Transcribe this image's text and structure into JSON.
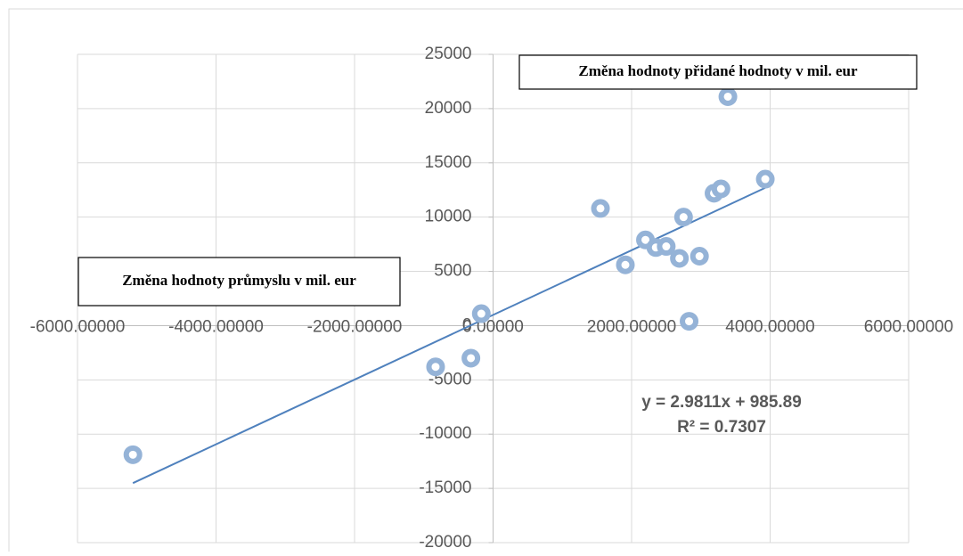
{
  "chart_data": {
    "type": "scatter",
    "xlabel": "Změna hodnoty průmyslu v mil. eur",
    "ylabel": "Změna hodnoty přidané hodnoty v mil. eur",
    "series": [
      {
        "color": "#95b3d7",
        "x": [
          -5200,
          -830,
          -170,
          -320,
          1550,
          1910,
          2200,
          2350,
          2500,
          2690,
          2750,
          2830,
          2980,
          3190,
          3290,
          3390,
          3930
        ],
        "values": [
          -11900,
          -3800,
          1100,
          -3000,
          10800,
          5600,
          7900,
          7200,
          7300,
          6200,
          10000,
          400,
          6400,
          12200,
          12600,
          21100,
          13500
        ]
      }
    ],
    "trendline": {
      "color": "#4f81bd",
      "slope": 2.9811,
      "intercept": 985.89,
      "equation": "y = 2.9811x + 985.89",
      "r_squared": "R² = 0.7307"
    },
    "xlim": [
      -6000,
      6000
    ],
    "xticks": [
      {
        "value": -6000,
        "label": "-6000.00000"
      },
      {
        "value": -4000,
        "label": "-4000.00000"
      },
      {
        "value": -2000,
        "label": "-2000.00000"
      },
      {
        "value": 0,
        "label": "0.00000"
      },
      {
        "value": 2000,
        "label": "2000.00000"
      },
      {
        "value": 4000,
        "label": "4000.00000"
      },
      {
        "value": 6000,
        "label": "6000.00000"
      }
    ],
    "ylim": [
      -20000,
      25000
    ],
    "yticks": [
      -20000,
      -15000,
      -10000,
      -5000,
      0,
      5000,
      10000,
      15000,
      20000,
      25000
    ],
    "grid": true
  }
}
